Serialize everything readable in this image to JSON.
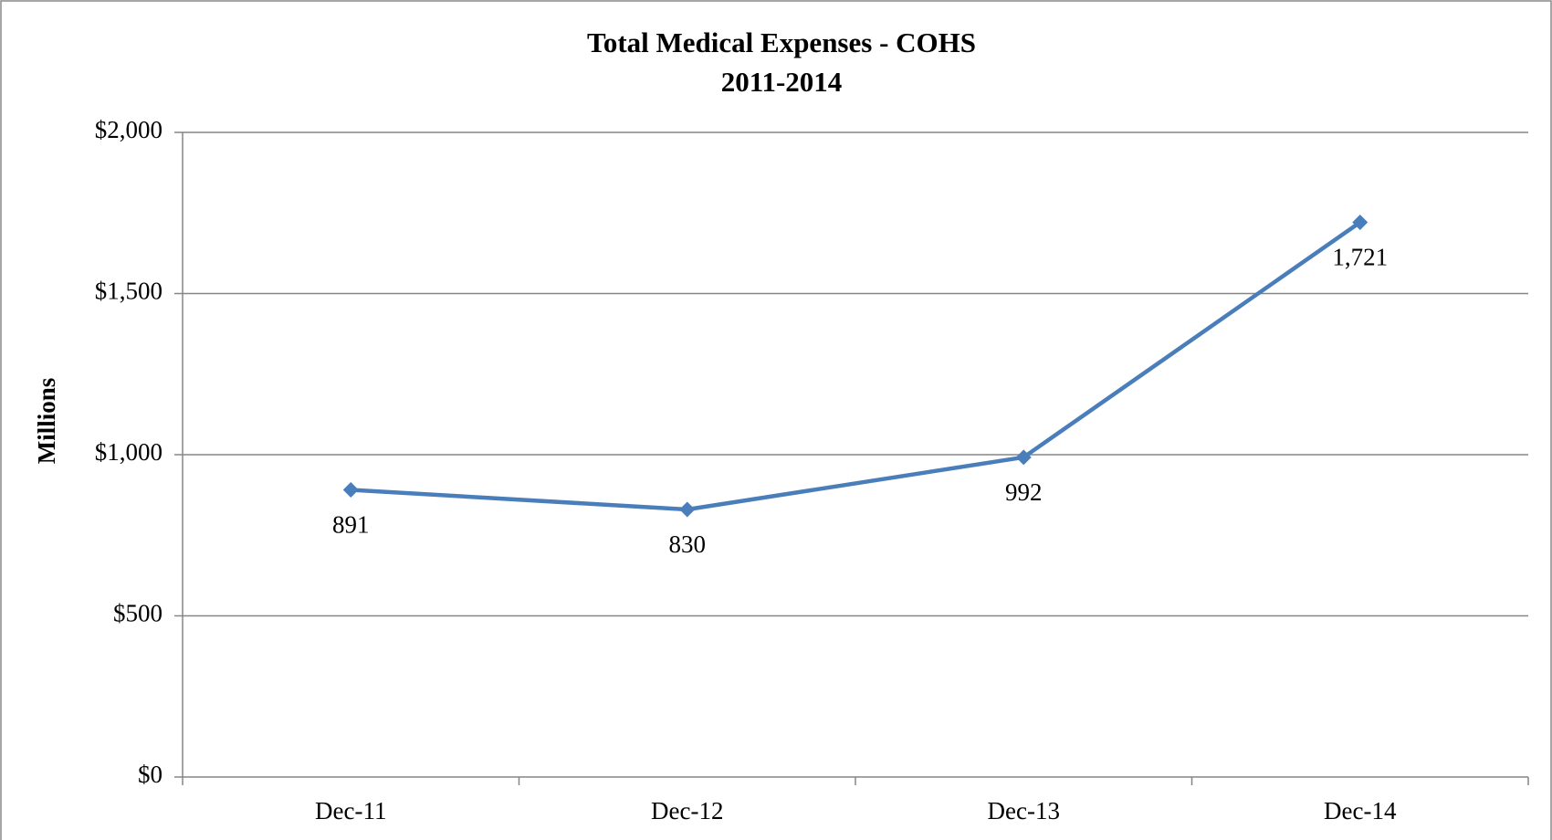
{
  "chart_data": {
    "type": "line",
    "title": "Total Medical Expenses - COHS",
    "subtitle": "2011-2014",
    "y_label": "Millions",
    "categories": [
      "Dec-11",
      "Dec-12",
      "Dec-13",
      "Dec-14"
    ],
    "values": [
      891,
      830,
      992,
      1721
    ],
    "value_labels": [
      "891",
      "830",
      "992",
      "1,721"
    ],
    "color": "#4a7ebb",
    "ylim": [
      0,
      2000
    ],
    "yticks": [
      {
        "value": 0,
        "label": "$0"
      },
      {
        "value": 500,
        "label": "$500"
      },
      {
        "value": 1000,
        "label": "$1,000"
      },
      {
        "value": 1500,
        "label": "$1,500"
      },
      {
        "value": 2000,
        "label": "$2,000"
      }
    ],
    "grid": true
  }
}
